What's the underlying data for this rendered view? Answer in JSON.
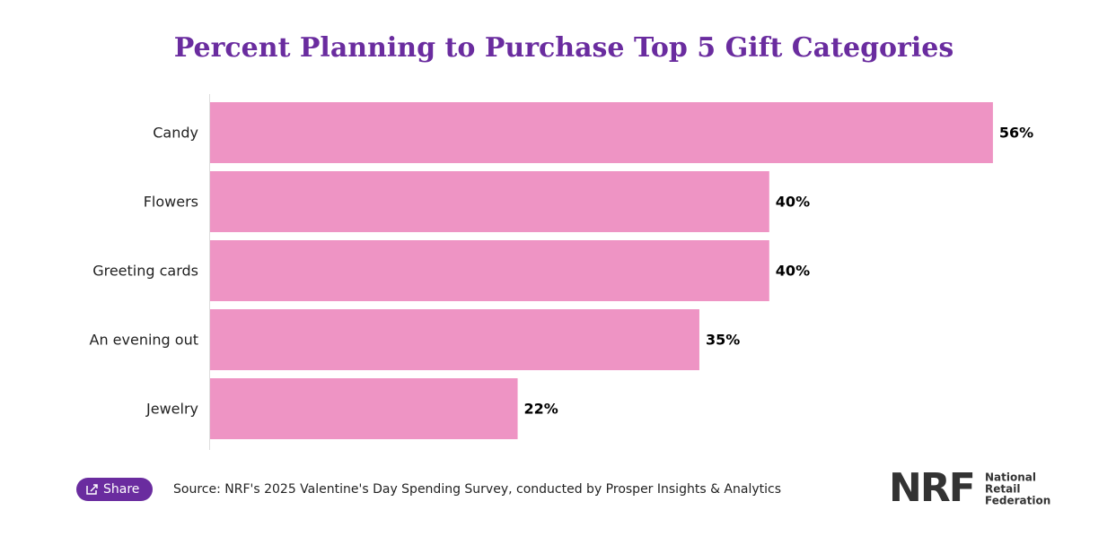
{
  "chart_data": {
    "type": "bar",
    "orientation": "horizontal",
    "title": "Percent Planning to Purchase Top 5 Gift Categories",
    "categories": [
      "Candy",
      "Flowers",
      "Greeting cards",
      "An evening out",
      "Jewelry"
    ],
    "values": [
      56,
      40,
      40,
      35,
      22
    ],
    "value_labels": [
      "56%",
      "40%",
      "40%",
      "35%",
      "22%"
    ],
    "color": "#ee94c4"
  },
  "footer": {
    "share": "Share",
    "source": "Source: NRF's 2025 Valentine's Day Spending Survey, conducted by Prosper Insights & Analytics",
    "logo": {
      "mark": "NRF",
      "lines": [
        "National",
        "Retail",
        "Federation"
      ]
    }
  }
}
